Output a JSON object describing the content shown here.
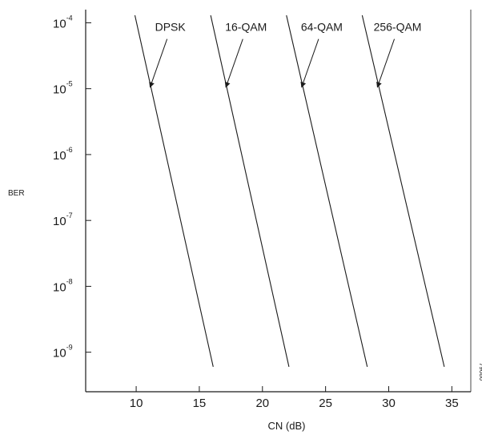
{
  "chart_data": {
    "type": "line",
    "xlabel": "CN (dB)",
    "ylabel": "BER",
    "xlim": [
      6,
      36.5
    ],
    "ylim_exponent": [
      -9.6,
      -3.8
    ],
    "yscale": "log",
    "x_ticks": [
      10,
      15,
      20,
      25,
      30,
      35
    ],
    "x_tick_labels": [
      "10",
      "15",
      "20",
      "25",
      "30",
      "35"
    ],
    "y_ticks": [
      0.0001,
      1e-05,
      1e-06,
      1e-07,
      1e-08,
      1e-09
    ],
    "y_tick_labels": [
      {
        "base": "10",
        "exp": "-4"
      },
      {
        "base": "10",
        "exp": "-5"
      },
      {
        "base": "10",
        "exp": "-6"
      },
      {
        "base": "10",
        "exp": "-7"
      },
      {
        "base": "10",
        "exp": "-8"
      },
      {
        "base": "10",
        "exp": "-9"
      }
    ],
    "grid": false,
    "series": [
      {
        "name": "DPSK",
        "x": [
          9.9,
          16.1
        ],
        "y": [
          0.00013,
          6e-10
        ]
      },
      {
        "name": "16-QAM",
        "x": [
          15.9,
          22.1
        ],
        "y": [
          0.00013,
          6e-10
        ]
      },
      {
        "name": "64-QAM",
        "x": [
          21.9,
          28.3
        ],
        "y": [
          0.00013,
          6e-10
        ]
      },
      {
        "name": "256-QAM",
        "x": [
          27.9,
          34.4
        ],
        "y": [
          0.00013,
          6e-10
        ]
      }
    ],
    "series_label_positions": [
      {
        "name": "DPSK",
        "label_x": 12.7,
        "label_y": 7.5e-05,
        "arrow_to_x": 11.1,
        "arrow_to_y": 1.05e-05
      },
      {
        "name": "16-QAM",
        "label_x": 18.7,
        "label_y": 7.5e-05,
        "arrow_to_x": 17.1,
        "arrow_to_y": 1.05e-05
      },
      {
        "name": "64-QAM",
        "label_x": 24.7,
        "label_y": 7.5e-05,
        "arrow_to_x": 23.1,
        "arrow_to_y": 1.05e-05
      },
      {
        "name": "256-QAM",
        "label_x": 30.7,
        "label_y": 7.5e-05,
        "arrow_to_x": 29.1,
        "arrow_to_y": 1.05e-05
      }
    ],
    "figure_id": "79686"
  }
}
